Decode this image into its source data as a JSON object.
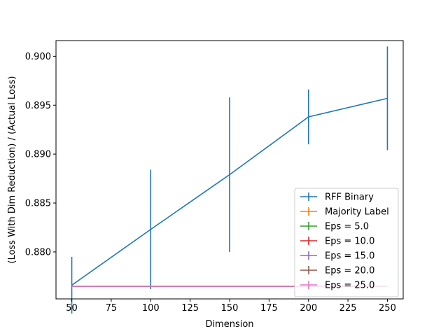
{
  "chart_data": {
    "type": "line",
    "title": "",
    "xlabel": "Dimension",
    "ylabel": "(Loss With Dim Reduction) / (Actual Loss)",
    "xlim": [
      40,
      260
    ],
    "ylim": [
      0.8752,
      0.9016
    ],
    "xticks": [
      50,
      75,
      100,
      125,
      150,
      175,
      200,
      225,
      250
    ],
    "yticks": [
      0.88,
      0.885,
      0.89,
      0.895,
      0.9
    ],
    "ytick_labels": [
      "0.880",
      "0.885",
      "0.890",
      "0.895",
      "0.900"
    ],
    "grid": false,
    "legend_position": "lower-right",
    "x": [
      50,
      100,
      150,
      200,
      250
    ],
    "series": [
      {
        "name": "RFF Binary",
        "color": "#1f77b4",
        "values": [
          0.8766,
          0.8823,
          0.8879,
          0.8938,
          0.8957
        ],
        "errors": [
          0.0029,
          0.0061,
          0.0079,
          0.0028,
          0.0053
        ]
      },
      {
        "name": "Majority Label",
        "color": "#ff7f0e",
        "values": [
          0.8765,
          0.8765,
          0.8765,
          0.8765,
          0.8765
        ],
        "errors": [
          0,
          0,
          0,
          0,
          0
        ]
      },
      {
        "name": "Eps = 5.0",
        "color": "#2ca02c",
        "values": [
          0.8765,
          0.8765,
          0.8765,
          0.8765,
          0.8765
        ],
        "errors": [
          0,
          0,
          0,
          0,
          0
        ]
      },
      {
        "name": "Eps = 10.0",
        "color": "#d62728",
        "values": [
          0.8765,
          0.8765,
          0.8765,
          0.8765,
          0.8765
        ],
        "errors": [
          0,
          0,
          0,
          0,
          0
        ]
      },
      {
        "name": "Eps = 15.0",
        "color": "#9467bd",
        "values": [
          0.8765,
          0.8765,
          0.8765,
          0.8765,
          0.8765
        ],
        "errors": [
          0,
          0,
          0,
          0,
          0
        ]
      },
      {
        "name": "Eps = 20.0",
        "color": "#8c564b",
        "values": [
          0.8765,
          0.8765,
          0.8765,
          0.8765,
          0.8765
        ],
        "errors": [
          0,
          0,
          0,
          0,
          0
        ]
      },
      {
        "name": "Eps = 25.0",
        "color": "#e377c2",
        "values": [
          0.8765,
          0.8765,
          0.8765,
          0.8765,
          0.8765
        ],
        "errors": [
          0,
          0,
          0,
          0,
          0
        ]
      }
    ]
  }
}
